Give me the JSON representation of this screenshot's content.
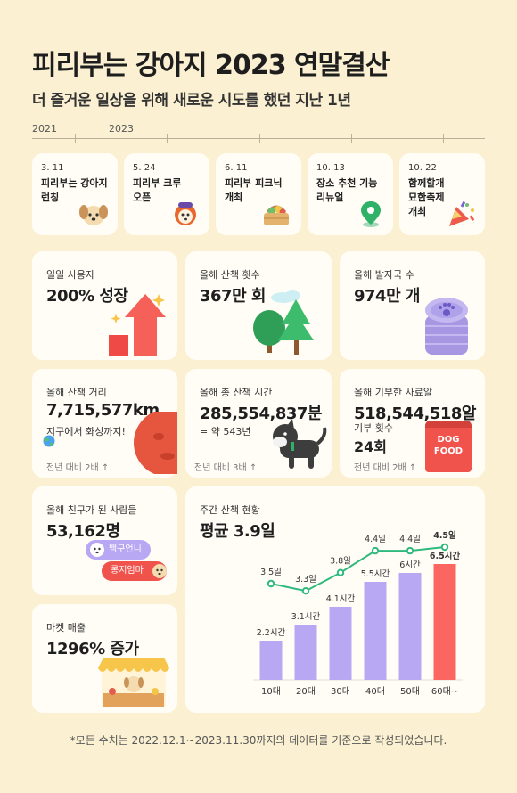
{
  "header": {
    "title": "피리부는 강아지 2023 연말결산",
    "subtitle": "더 즐거운 일상을 위해 새로운 시도를 했던 지난 1년"
  },
  "timeline": {
    "years": [
      "2021",
      "2023"
    ],
    "events": [
      {
        "date": "3. 11",
        "title": "피리부는 강아지\n런칭",
        "icon": "puppy-icon"
      },
      {
        "date": "5. 24",
        "title": "피리부 크루\n오픈",
        "icon": "crew-dog-icon"
      },
      {
        "date": "6. 11",
        "title": "피리부 피크닉\n개최",
        "icon": "picnic-basket-icon"
      },
      {
        "date": "10. 13",
        "title": "장소 추천 기능\n리뉴얼",
        "icon": "map-pin-icon"
      },
      {
        "date": "10. 22",
        "title": "함께할개\n묘한축제\n개최",
        "icon": "party-popper-icon"
      }
    ]
  },
  "stats": {
    "daily_users": {
      "label": "일일 사용자",
      "value": "200% 성장"
    },
    "walks": {
      "label": "올해 산책 횟수",
      "value": "367만 회"
    },
    "footprints": {
      "label": "올해 발자국 수",
      "value": "974만 개"
    },
    "distance": {
      "label": "올해 산책 거리",
      "value": "7,715,577km",
      "note": "지구에서 화성까지!",
      "compare": "전년 대비 2배 ↑"
    },
    "time": {
      "label": "올해 총 산책 시간",
      "value": "285,554,837분",
      "note": "= 약 543년",
      "compare": "전년 대비 3배 ↑"
    },
    "donation": {
      "label": "올해 기부한 사료알",
      "value": "518,544,518알",
      "count_label": "기부 횟수",
      "count_value": "24회",
      "compare": "전년 대비 2배 ↑",
      "bag_text_1": "DOG",
      "bag_text_2": "FOOD"
    },
    "friends": {
      "label": "올해 친구가 된 사람들",
      "value": "53,162명",
      "bubble_1": "백구언니",
      "bubble_2": "롱지엄마"
    },
    "market": {
      "label": "마켓 매출",
      "value": "1296% 증가"
    }
  },
  "weekly": {
    "label": "주간 산책 현황",
    "value": "평균 3.9일"
  },
  "chart_data": {
    "type": "bar",
    "categories": [
      "10대",
      "20대",
      "30대",
      "40대",
      "50대",
      "60대~"
    ],
    "series": [
      {
        "values": [
          2.2,
          3.1,
          4.1,
          5.5,
          6,
          6.5
        ],
        "labels": [
          "2.2시간",
          "3.1시간",
          "4.1시간",
          "5.5시간",
          "6시간",
          "6.5시간"
        ]
      },
      {
        "values": [
          3.5,
          3.3,
          3.8,
          4.4,
          4.4,
          4.5
        ],
        "labels": [
          "3.5일",
          "3.3일",
          "3.8일",
          "4.4일",
          "4.4일",
          "4.5일"
        ]
      }
    ],
    "colors": {
      "bar": "#b8a7f2",
      "bar_highlight": "#fb6660",
      "line": "#30b97c"
    }
  },
  "footer": "*모든 수치는 2022.12.1~2023.11.30까지의 데이터를 기준으로 작성되었습니다."
}
